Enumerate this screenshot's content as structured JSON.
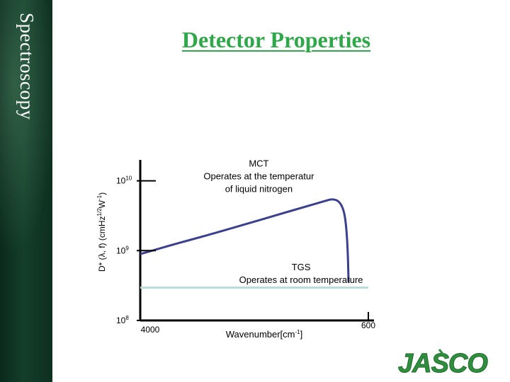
{
  "sidebar": {
    "text": "Spectroscopy"
  },
  "title": "Detector Properties",
  "colors": {
    "title": "#2fa84a",
    "sidebar": "#133e2a",
    "mct_curve": "#3b3f8f",
    "tgs_line": "#b9dcd6",
    "axis": "#000000",
    "logo": "#2f8f3e"
  },
  "logo": {
    "text": "JASCO"
  },
  "chart_data": {
    "type": "line",
    "title": "",
    "xlabel": "Wavenumber[cm-1]",
    "xlabel_main": "Wavenumber[cm",
    "xlabel_sup": "-1",
    "xlabel_close": "]",
    "ylabel_main": "D* (λ, f) (cmHz",
    "ylabel_sup1": "1/2",
    "ylabel_mid": "W",
    "ylabel_sup2": "-1",
    "ylabel_close": ")",
    "x_reversed": true,
    "xlim": [
      4000,
      600
    ],
    "y_scale": "log",
    "ylim": [
      8,
      10.3
    ],
    "x_ticks": [
      {
        "value": 4000,
        "label": "4000"
      },
      {
        "value": 600,
        "label": "600"
      }
    ],
    "y_ticks": [
      {
        "value": 10,
        "base": "10",
        "exp": "10"
      },
      {
        "value": 9,
        "base": "10",
        "exp": "9"
      },
      {
        "value": 8,
        "base": "10",
        "exp": "8"
      }
    ],
    "series": [
      {
        "points": [
          [
            4000,
            8.95
          ],
          [
            3500,
            9.09
          ],
          [
            3000,
            9.22
          ],
          [
            2500,
            9.36
          ],
          [
            2000,
            9.5
          ],
          [
            1500,
            9.64
          ],
          [
            1250,
            9.71
          ],
          [
            1150,
            9.74
          ],
          [
            1050,
            9.72
          ],
          [
            980,
            9.62
          ],
          [
            940,
            9.45
          ],
          [
            910,
            9.1
          ],
          [
            895,
            8.55
          ]
        ]
      },
      {
        "points": [
          [
            4000,
            8.47
          ],
          [
            600,
            8.47
          ]
        ]
      }
    ],
    "annotations": [
      {
        "lines": [
          "MCT",
          "Operates at the temperatur",
          "of liquid nitrogen"
        ],
        "anchor": [
          2000,
          9.95
        ]
      },
      {
        "lines": [
          "TGS",
          "Operates at room temperature"
        ],
        "anchor": [
          1750,
          8.72
        ]
      }
    ]
  }
}
